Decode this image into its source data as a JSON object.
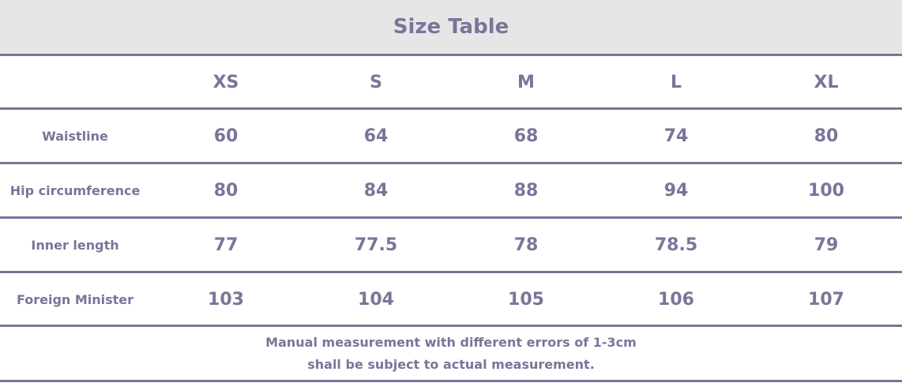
{
  "title": "Size Table",
  "sizes": [
    "XS",
    "S",
    "M",
    "L",
    "XL"
  ],
  "rows": [
    {
      "label": "Waistline",
      "values": [
        "60",
        "64",
        "68",
        "74",
        "80"
      ]
    },
    {
      "label": "Hip circumference",
      "values": [
        "80",
        "84",
        "88",
        "94",
        "100"
      ]
    },
    {
      "label": "Inner length",
      "values": [
        "77",
        "77.5",
        "78",
        "78.5",
        "79"
      ]
    },
    {
      "label": "Foreign Minister",
      "values": [
        "103",
        "104",
        "105",
        "106",
        "107"
      ]
    }
  ],
  "footer": [
    "Manual measurement with different errors of 1-3cm",
    "shall be subject to actual measurement."
  ],
  "colors": {
    "accent": "#7d7399",
    "header_bg": "#e6e6e6"
  }
}
